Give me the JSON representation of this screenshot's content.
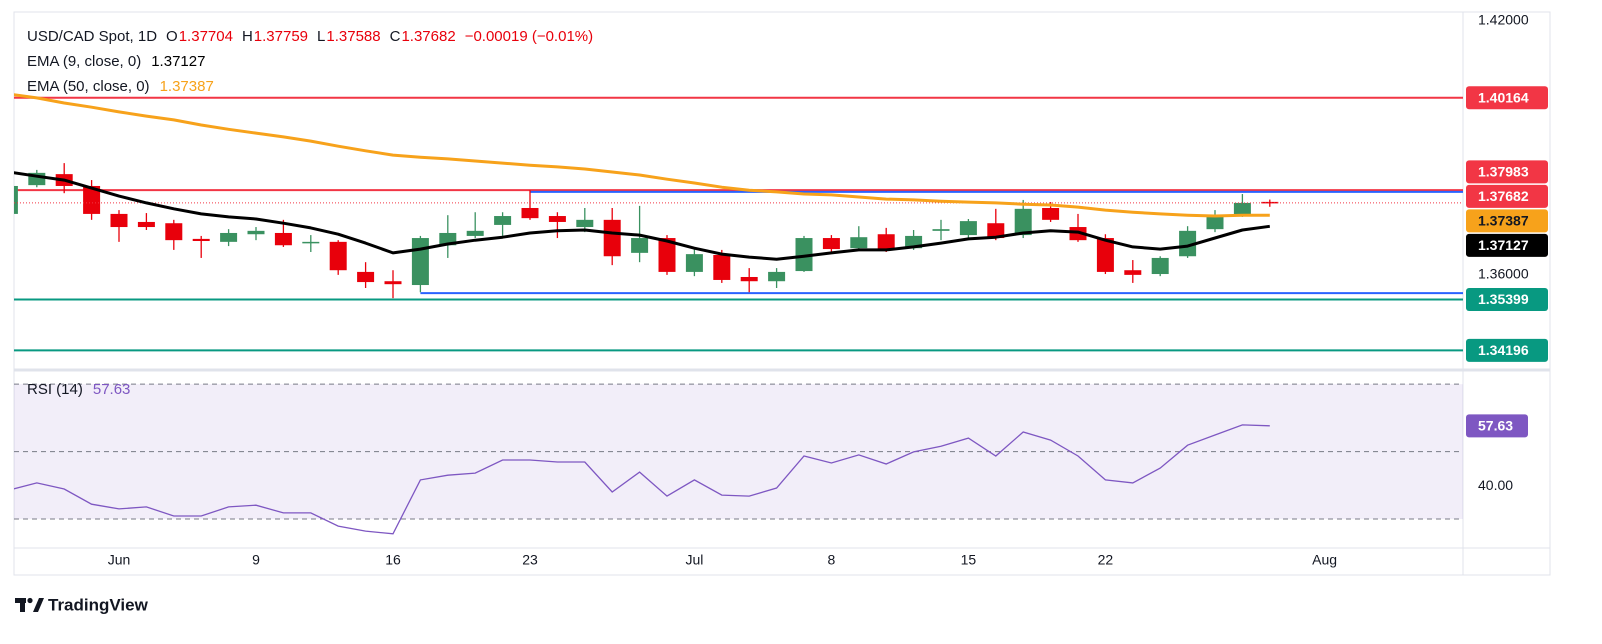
{
  "chart_data": [
    {
      "type": "candlestick",
      "title": "USD/CAD Spot, 1D",
      "ohlc_prefixes": [
        "O",
        "H",
        "L",
        "C"
      ],
      "change_label": "−0.00019 (−0.01%)",
      "categories": [
        null,
        null,
        null,
        null,
        "Jun",
        null,
        null,
        null,
        null,
        "9",
        null,
        null,
        null,
        null,
        "16",
        null,
        null,
        null,
        null,
        "23",
        null,
        null,
        null,
        null,
        null,
        "Jul",
        null,
        null,
        null,
        null,
        "8",
        null,
        null,
        null,
        null,
        "15",
        null,
        null,
        null,
        null,
        "22",
        null,
        null,
        null,
        null,
        null,
        null,
        null,
        "Aug",
        null,
        null,
        null,
        null
      ],
      "series": [
        {
          "type": "candlestick",
          "up_color": "#3a9160",
          "down_color": "#e8000b",
          "open": [
            1.3742,
            1.381,
            1.3836,
            1.3808,
            1.3742,
            1.3723,
            1.372,
            1.3683,
            1.3676,
            1.3694,
            1.3697,
            1.3673,
            1.3676,
            1.3605,
            1.3583,
            1.3574,
            1.3668,
            1.369,
            1.3716,
            1.3756,
            1.3737,
            1.3711,
            1.3728,
            1.365,
            1.3685,
            1.3605,
            1.3645,
            1.3593,
            1.3583,
            1.3607,
            1.3685,
            1.3661,
            1.3694,
            1.3661,
            1.3702,
            1.3692,
            1.372,
            1.3692,
            1.3756,
            1.3711,
            1.3685,
            1.3609,
            1.36,
            1.3642,
            1.3706,
            1.3737,
            1.37704,
            null,
            null,
            null,
            null,
            null,
            null
          ],
          "high": [
            1.381,
            1.3846,
            1.3862,
            1.3822,
            1.3751,
            1.3744,
            1.3728,
            1.369,
            1.3706,
            1.3711,
            1.3728,
            1.3692,
            1.368,
            1.3628,
            1.3609,
            1.369,
            1.3739,
            1.3746,
            1.3746,
            1.3798,
            1.3746,
            1.3756,
            1.3756,
            1.3761,
            1.3692,
            1.3661,
            1.3657,
            1.3614,
            1.3614,
            1.369,
            1.3692,
            1.3713,
            1.3709,
            1.3704,
            1.3728,
            1.373,
            1.3754,
            1.3775,
            1.377,
            1.3742,
            1.3694,
            1.3633,
            1.3642,
            1.3713,
            1.3751,
            1.3789,
            1.37759,
            null,
            null,
            null,
            null,
            null,
            null
          ],
          "low": [
            1.3737,
            1.3805,
            1.3791,
            1.3728,
            1.3676,
            1.3704,
            1.3657,
            1.3638,
            1.3666,
            1.368,
            1.3664,
            1.3652,
            1.3598,
            1.3567,
            1.3543,
            1.3557,
            1.3638,
            1.3685,
            1.369,
            1.3728,
            1.3685,
            1.3699,
            1.3621,
            1.3628,
            1.3598,
            1.3595,
            1.3579,
            1.3557,
            1.3567,
            1.3605,
            1.3652,
            1.3657,
            1.3652,
            1.3657,
            1.368,
            1.368,
            1.368,
            1.3685,
            1.3723,
            1.3676,
            1.36,
            1.3579,
            1.3595,
            1.3638,
            1.3699,
            1.3735,
            1.37588,
            null,
            null,
            null,
            null,
            null,
            null
          ],
          "close": [
            1.3808,
            1.3839,
            1.3808,
            1.3742,
            1.3711,
            1.3711,
            1.368,
            1.3678,
            1.3697,
            1.3702,
            1.3668,
            1.3676,
            1.3609,
            1.3581,
            1.3576,
            1.3685,
            1.3697,
            1.3702,
            1.3737,
            1.3732,
            1.3723,
            1.3728,
            1.3642,
            1.3685,
            1.3605,
            1.3647,
            1.3586,
            1.3583,
            1.3605,
            1.3685,
            1.3659,
            1.3687,
            1.3659,
            1.369,
            1.3706,
            1.3725,
            1.3685,
            1.3754,
            1.3728,
            1.368,
            1.3605,
            1.3598,
            1.3638,
            1.3702,
            1.3739,
            1.3768,
            1.37682,
            null,
            null,
            null,
            null,
            null,
            null
          ]
        },
        {
          "type": "line",
          "name": "EMA (9, close, 0)",
          "color": "#000000",
          "values": [
            1.3841,
            1.3831,
            1.3822,
            1.3803,
            1.3784,
            1.3768,
            1.3754,
            1.3742,
            1.3735,
            1.373,
            1.372,
            1.3709,
            1.3694,
            1.3673,
            1.365,
            1.3659,
            1.3671,
            1.368,
            1.3687,
            1.3697,
            1.3702,
            1.3704,
            1.3697,
            1.3692,
            1.3678,
            1.3661,
            1.3647,
            1.364,
            1.3635,
            1.3642,
            1.365,
            1.3657,
            1.3657,
            1.3664,
            1.3673,
            1.3683,
            1.3687,
            1.3697,
            1.3702,
            1.3699,
            1.368,
            1.3664,
            1.3659,
            1.3666,
            1.3685,
            1.3704,
            1.37127,
            null,
            null,
            null,
            null,
            null,
            null
          ]
        },
        {
          "type": "line",
          "name": "EMA (50, close, 0)",
          "color": "#f7a21b",
          "values": [
            1.4025,
            1.4016,
            1.4004,
            1.3994,
            1.3983,
            1.3973,
            1.3964,
            1.3952,
            1.3942,
            1.3933,
            1.3924,
            1.3914,
            1.3902,
            1.3891,
            1.3881,
            1.3876,
            1.3872,
            1.3867,
            1.3862,
            1.3857,
            1.3853,
            1.3848,
            1.3841,
            1.3834,
            1.3824,
            1.3815,
            1.3805,
            1.3798,
            1.3794,
            1.3789,
            1.3787,
            1.3782,
            1.3777,
            1.3775,
            1.3772,
            1.377,
            1.3768,
            1.3765,
            1.3763,
            1.3758,
            1.3751,
            1.3746,
            1.3742,
            1.3739,
            1.3737,
            1.3739,
            1.37387,
            null,
            null,
            null,
            null,
            null,
            null
          ]
        }
      ],
      "levels": [
        {
          "value": 1.40164,
          "color": "#f23645"
        },
        {
          "value": 1.37983,
          "color": "#f23645"
        },
        {
          "value": 1.35399,
          "color": "#089981"
        },
        {
          "value": 1.34196,
          "color": "#089981"
        }
      ],
      "channel_lines": [
        {
          "value": 1.3794,
          "from": 19,
          "color": "#2962ff"
        },
        {
          "value": 1.3555,
          "from": 15,
          "color": "#2962ff"
        }
      ],
      "last_price_color": "#f23645",
      "ylim": [
        1.3378,
        1.4219
      ],
      "yticks": [
        {
          "value": 1.36,
          "label": "1.36000"
        },
        {
          "value": 1.42,
          "label": "1.42000"
        }
      ]
    },
    {
      "type": "line",
      "series": [
        {
          "name": "RSI (14)",
          "color": "#7e57c2",
          "values": [
            38.6,
            40.7,
            38.9,
            34.4,
            33.0,
            33.6,
            30.9,
            30.9,
            33.6,
            34.1,
            31.8,
            31.8,
            27.9,
            26.4,
            25.6,
            41.6,
            43.0,
            43.6,
            47.5,
            47.5,
            46.9,
            46.9,
            38.0,
            43.9,
            36.8,
            41.6,
            37.1,
            36.8,
            39.2,
            48.7,
            46.6,
            49.0,
            46.3,
            49.9,
            51.6,
            54.0,
            48.7,
            55.8,
            53.4,
            48.7,
            41.6,
            40.7,
            45.1,
            51.9,
            54.9,
            57.9,
            57.63,
            null,
            null,
            null,
            null,
            null,
            null
          ]
        }
      ],
      "guides": [
        70,
        50,
        30
      ],
      "band_color": "#7e57c2",
      "ylim": [
        21.4,
        73.6
      ],
      "yticks": [
        {
          "value": 40,
          "label": "40.00"
        }
      ]
    }
  ],
  "footer": {
    "brand": "TradingView"
  }
}
